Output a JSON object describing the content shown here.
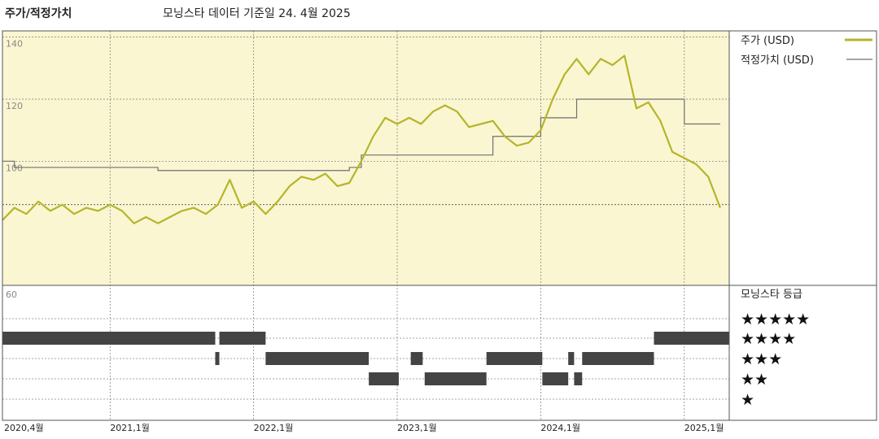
{
  "header": {
    "left_title": "주가/적정가치",
    "center_title": "모닝스타 데이터 기준일 24. 4월 2025"
  },
  "legend": {
    "price_label": "주가 (USD)",
    "fair_value_label": "적정가치 (USD)",
    "rating_title": "모닝스타 등급",
    "star_rows": [
      "★★★★★",
      "★★★★",
      "★★★",
      "★★",
      "★"
    ]
  },
  "colors": {
    "price": "#b5b52a",
    "fair_value": "#6f6f6f",
    "upper_bg": "#faf6d2",
    "bar": "#444444"
  },
  "chart_data": [
    {
      "type": "line",
      "title": "",
      "xlabel": "",
      "ylabel": "",
      "y_axis_label": "60",
      "y_ticks": [
        140,
        120,
        100
      ],
      "ylim": [
        60,
        142
      ],
      "xlim": [
        "2020-04",
        "2025-04"
      ],
      "x_tick_labels": [
        {
          "x": "2020-04",
          "label": "2020,4월"
        },
        {
          "x": "2021-01",
          "label": "2021,1월"
        },
        {
          "x": "2022-01",
          "label": "2022,1월"
        },
        {
          "x": "2023-01",
          "label": "2023,1월"
        },
        {
          "x": "2024-01",
          "label": "2024,1월"
        },
        {
          "x": "2025-01",
          "label": "2025,1월"
        }
      ],
      "grid": true,
      "reference_line": 86,
      "series": [
        {
          "name": "주가 (USD)",
          "points": [
            [
              "2020-04",
              81
            ],
            [
              "2020-05",
              85
            ],
            [
              "2020-06",
              83
            ],
            [
              "2020-07",
              87
            ],
            [
              "2020-08",
              84
            ],
            [
              "2020-09",
              86
            ],
            [
              "2020-10",
              83
            ],
            [
              "2020-11",
              85
            ],
            [
              "2020-12",
              84
            ],
            [
              "2021-01",
              86
            ],
            [
              "2021-02",
              84
            ],
            [
              "2021-03",
              80
            ],
            [
              "2021-04",
              82
            ],
            [
              "2021-05",
              80
            ],
            [
              "2021-06",
              82
            ],
            [
              "2021-07",
              84
            ],
            [
              "2021-08",
              85
            ],
            [
              "2021-09",
              83
            ],
            [
              "2021-10",
              86
            ],
            [
              "2021-11",
              94
            ],
            [
              "2021-12",
              85
            ],
            [
              "2022-01",
              87
            ],
            [
              "2022-02",
              83
            ],
            [
              "2022-03",
              87
            ],
            [
              "2022-04",
              92
            ],
            [
              "2022-05",
              95
            ],
            [
              "2022-06",
              94
            ],
            [
              "2022-07",
              96
            ],
            [
              "2022-08",
              92
            ],
            [
              "2022-09",
              93
            ],
            [
              "2022-10",
              100
            ],
            [
              "2022-11",
              108
            ],
            [
              "2022-12",
              114
            ],
            [
              "2023-01",
              112
            ],
            [
              "2023-02",
              114
            ],
            [
              "2023-03",
              112
            ],
            [
              "2023-04",
              116
            ],
            [
              "2023-05",
              118
            ],
            [
              "2023-06",
              116
            ],
            [
              "2023-07",
              111
            ],
            [
              "2023-08",
              112
            ],
            [
              "2023-09",
              113
            ],
            [
              "2023-10",
              108
            ],
            [
              "2023-11",
              105
            ],
            [
              "2023-12",
              106
            ],
            [
              "2024-01",
              110
            ],
            [
              "2024-02",
              120
            ],
            [
              "2024-03",
              128
            ],
            [
              "2024-04",
              133
            ],
            [
              "2024-05",
              128
            ],
            [
              "2024-06",
              133
            ],
            [
              "2024-07",
              131
            ],
            [
              "2024-08",
              134
            ],
            [
              "2024-09",
              117
            ],
            [
              "2024-10",
              119
            ],
            [
              "2024-11",
              113
            ],
            [
              "2024-12",
              103
            ],
            [
              "2025-01",
              101
            ],
            [
              "2025-02",
              99
            ],
            [
              "2025-03",
              95
            ],
            [
              "2025-04",
              85
            ]
          ]
        },
        {
          "name": "적정가치 (USD)",
          "step": true,
          "points": [
            [
              "2020-04",
              100
            ],
            [
              "2020-05",
              98
            ],
            [
              "2021-05",
              97
            ],
            [
              "2022-09",
              98
            ],
            [
              "2022-10",
              102
            ],
            [
              "2023-09",
              108
            ],
            [
              "2024-01",
              114
            ],
            [
              "2024-04",
              120
            ],
            [
              "2025-01",
              112
            ],
            [
              "2025-04",
              112
            ]
          ]
        }
      ]
    },
    {
      "type": "timeline",
      "title": "",
      "xlim": [
        "2020-04",
        "2025-04"
      ],
      "rows": [
        "★★★★★",
        "★★★★",
        "★★★",
        "★★",
        "★"
      ],
      "segments": [
        {
          "stars": 4,
          "start": "2020-04-01",
          "end": "2021-09-25"
        },
        {
          "stars": 4,
          "start": "2021-10-05",
          "end": "2022-02-01"
        },
        {
          "stars": 3,
          "start": "2021-09-25",
          "end": "2021-10-05"
        },
        {
          "stars": 3,
          "start": "2022-02-01",
          "end": "2022-10-20"
        },
        {
          "stars": 3,
          "start": "2023-02-05",
          "end": "2023-03-05"
        },
        {
          "stars": 3,
          "start": "2023-08-15",
          "end": "2024-01-05"
        },
        {
          "stars": 3,
          "start": "2024-03-10",
          "end": "2024-03-25"
        },
        {
          "stars": 3,
          "start": "2024-04-15",
          "end": "2024-10-15"
        },
        {
          "stars": 2,
          "start": "2022-10-20",
          "end": "2023-01-05"
        },
        {
          "stars": 2,
          "start": "2023-03-10",
          "end": "2023-08-15"
        },
        {
          "stars": 2,
          "start": "2024-01-05",
          "end": "2024-03-10"
        },
        {
          "stars": 2,
          "start": "2024-03-25",
          "end": "2024-04-15"
        },
        {
          "stars": 4,
          "start": "2024-10-15",
          "end": "2025-04-24"
        }
      ]
    }
  ]
}
